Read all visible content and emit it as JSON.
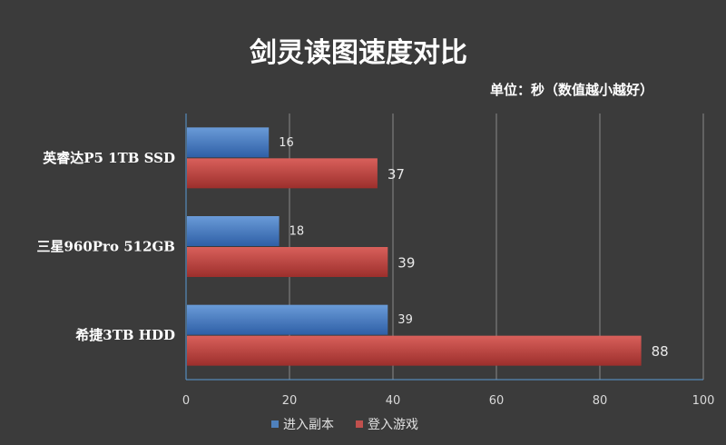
{
  "chart_data": {
    "type": "bar",
    "orientation": "horizontal",
    "title": "剑灵读图速度对比",
    "subtitle": "单位：秒（数值越小越好）",
    "categories": [
      "英睿达P5 1TB SSD",
      "三星960Pro 512GB",
      "希捷3TB HDD"
    ],
    "series": [
      {
        "name": "进入副本",
        "values": [
          16,
          18,
          39
        ],
        "color": "#4f81bd"
      },
      {
        "name": "登入游戏",
        "values": [
          37,
          39,
          88
        ],
        "color": "#c0504d"
      }
    ],
    "xlim": [
      0,
      100
    ],
    "xticks": [
      0,
      20,
      40,
      60,
      80,
      100
    ],
    "grid": true,
    "legend_position": "bottom"
  }
}
